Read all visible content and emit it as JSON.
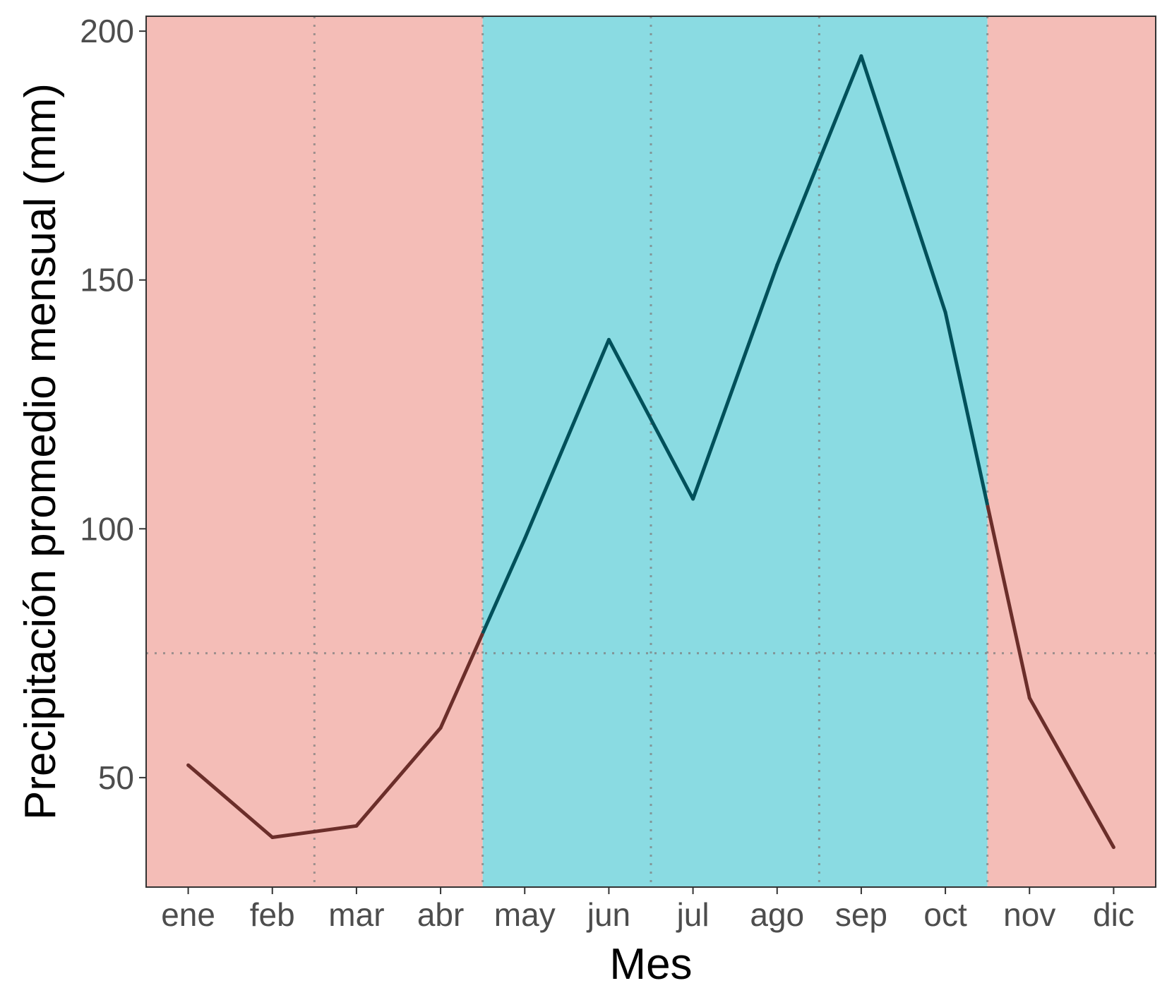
{
  "chart_data": {
    "type": "line",
    "xlabel": "Mes",
    "ylabel": "Precipitación promedio mensual (mm)",
    "categories": [
      "ene",
      "feb",
      "mar",
      "abr",
      "may",
      "jun",
      "jul",
      "ago",
      "sep",
      "oct",
      "nov",
      "dic"
    ],
    "values": [
      52.5,
      38,
      40.3,
      60,
      98,
      138,
      106,
      153,
      195,
      143.5,
      66,
      36
    ],
    "ylim": [
      28,
      203
    ],
    "yticks": [
      50,
      100,
      150,
      200
    ],
    "threshold": 75,
    "wet_season": {
      "from": "may",
      "to": "oct"
    },
    "grid": false,
    "colors": {
      "dry_background": "#f4bdb7",
      "wet_background": "#8adbe2",
      "dry_line": "#6b2e2a",
      "wet_line": "#00505a",
      "reference_line": "#808080"
    }
  }
}
